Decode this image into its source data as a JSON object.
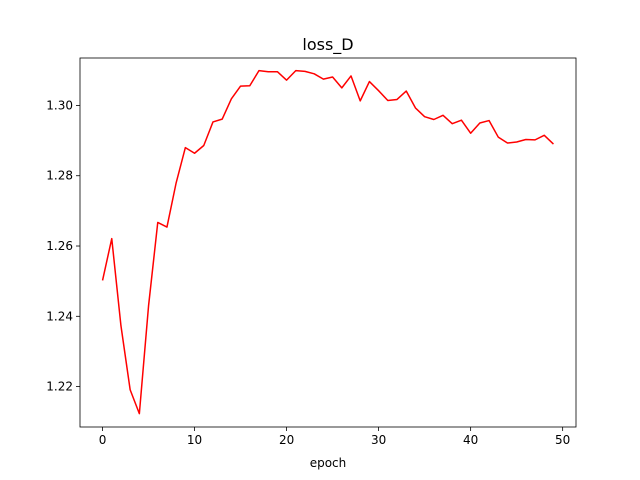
{
  "chart_data": {
    "type": "line",
    "title": "loss_D",
    "xlabel": "epoch",
    "ylabel": "",
    "xlim": [
      -2.45,
      51.45
    ],
    "ylim": [
      1.2085,
      1.3135
    ],
    "xticks": [
      0,
      10,
      20,
      30,
      40,
      50
    ],
    "yticks": [
      1.22,
      1.24,
      1.26,
      1.28,
      1.3
    ],
    "ytick_labels": [
      "1.22",
      "1.24",
      "1.26",
      "1.28",
      "1.30"
    ],
    "grid": false,
    "series": [
      {
        "color": "#ff0000",
        "x": [
          0,
          1,
          2,
          3,
          4,
          5,
          6,
          7,
          8,
          9,
          10,
          11,
          12,
          13,
          14,
          15,
          16,
          17,
          18,
          19,
          20,
          21,
          22,
          23,
          24,
          25,
          26,
          27,
          28,
          29,
          30,
          31,
          32,
          33,
          34,
          35,
          36,
          37,
          38,
          39,
          40,
          41,
          42,
          43,
          44,
          45,
          46,
          47,
          48,
          49
        ],
        "y": [
          1.2502,
          1.2621,
          1.2373,
          1.2191,
          1.2123,
          1.243,
          1.2667,
          1.2654,
          1.278,
          1.288,
          1.2864,
          1.2886,
          1.2953,
          1.2961,
          1.3019,
          1.3055,
          1.3056,
          1.3099,
          1.3096,
          1.3096,
          1.3072,
          1.3099,
          1.3097,
          1.309,
          1.3075,
          1.3081,
          1.305,
          1.3084,
          1.3013,
          1.3068,
          1.3042,
          1.3014,
          1.3017,
          1.3041,
          1.2993,
          1.2968,
          1.296,
          1.2972,
          1.2948,
          1.2958,
          1.2921,
          1.295,
          1.2957,
          1.291,
          1.2893,
          1.2896,
          1.2903,
          1.2902,
          1.2915,
          1.289
        ]
      }
    ]
  }
}
